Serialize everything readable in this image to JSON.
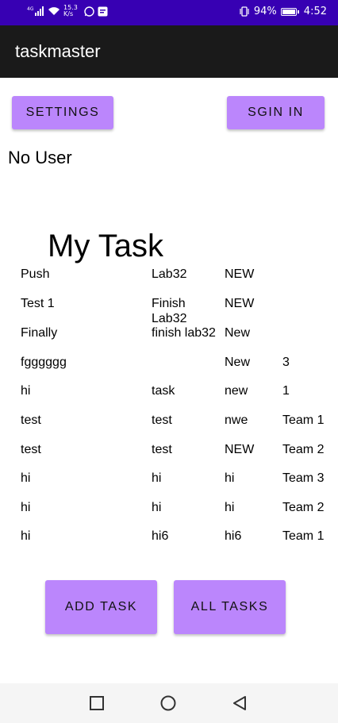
{
  "status_bar": {
    "network": "4G",
    "speed": "15.3 K/s",
    "battery": "94%",
    "time": "4:52"
  },
  "app_bar": {
    "title": "taskmaster"
  },
  "buttons": {
    "settings": "SETTINGS",
    "sign_in": "SGIN IN",
    "add_task": "ADD TASK",
    "all_tasks": "ALL TASKS"
  },
  "user_label": "No User",
  "heading": "My Task",
  "tasks": [
    {
      "title": "Push",
      "body": "Lab32",
      "state": "NEW",
      "team": ""
    },
    {
      "title": "Test 1",
      "body": "Finish Lab32",
      "state": "NEW",
      "team": ""
    },
    {
      "title": "Finally",
      "body": "finish lab32",
      "state": "New",
      "team": ""
    },
    {
      "title": "fgggggg",
      "body": "",
      "state": "New",
      "team": "3"
    },
    {
      "title": "hi",
      "body": "task",
      "state": "new",
      "team": "1"
    },
    {
      "title": "test",
      "body": "test",
      "state": "nwe",
      "team": "Team 1"
    },
    {
      "title": "test",
      "body": "test",
      "state": "NEW",
      "team": "Team 2"
    },
    {
      "title": "hi",
      "body": "hi",
      "state": "hi",
      "team": "Team 3"
    },
    {
      "title": "hi",
      "body": "hi",
      "state": "hi",
      "team": "Team 2"
    },
    {
      "title": "hi",
      "body": "hi6",
      "state": "hi6",
      "team": "Team 1"
    }
  ],
  "icons": {
    "signal": "signal-icon",
    "wifi": "wifi-icon",
    "whatsapp": "whatsapp-icon",
    "message": "message-icon",
    "vibrate": "vibrate-icon",
    "battery": "battery-icon",
    "nav_recent": "square-icon",
    "nav_home": "circle-icon",
    "nav_back": "triangle-back-icon"
  },
  "colors": {
    "status_bar": "#3700b3",
    "app_bar": "#1a1a1a",
    "button": "#bb86fc"
  }
}
